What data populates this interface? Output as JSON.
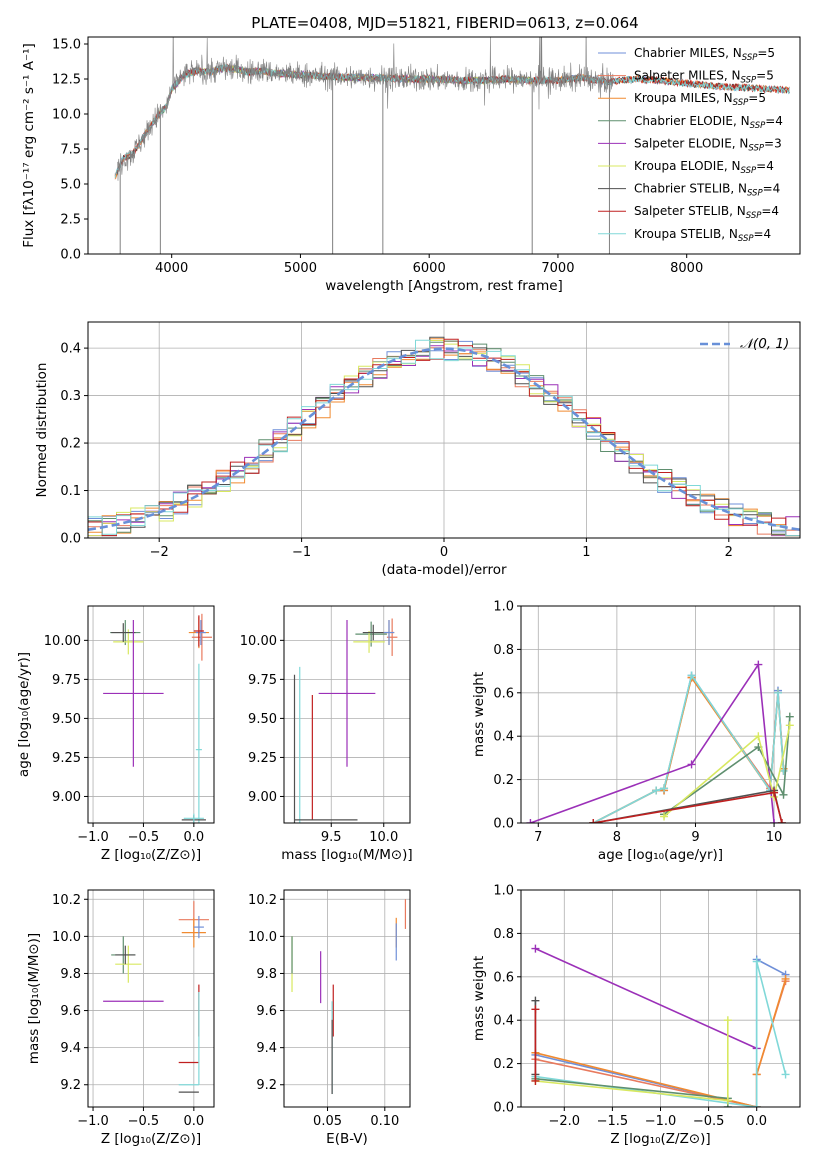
{
  "figure_title": "PLATE=0408, MJD=51821, FIBERID=0613, z=0.064",
  "colors": {
    "cm": "#6f8fd8",
    "sm": "#e87a5e",
    "km": "#f08a30",
    "ce": "#5f8f6f",
    "se": "#9b30b8",
    "ke": "#d8e860",
    "cs": "#505050",
    "ss": "#c02020",
    "ks": "#80d8d8",
    "grey": "#808080",
    "dash": "#6890d8"
  },
  "legend": [
    {
      "key": "cm",
      "label": "Chabrier MILES, N",
      "sub": "SSP",
      "suffix": "=5"
    },
    {
      "key": "sm",
      "label": "Salpeter MILES, N",
      "sub": "SSP",
      "suffix": "=5"
    },
    {
      "key": "km",
      "label": "Kroupa MILES, N",
      "sub": "SSP",
      "suffix": "=5"
    },
    {
      "key": "ce",
      "label": "Chabrier ELODIE, N",
      "sub": "SSP",
      "suffix": "=4"
    },
    {
      "key": "se",
      "label": "Salpeter ELODIE, N",
      "sub": "SSP",
      "suffix": "=3"
    },
    {
      "key": "ke",
      "label": "Kroupa ELODIE, N",
      "sub": "SSP",
      "suffix": "=4"
    },
    {
      "key": "cs",
      "label": "Chabrier STELIB, N",
      "sub": "SSP",
      "suffix": "=4"
    },
    {
      "key": "ss",
      "label": "Salpeter STELIB, N",
      "sub": "SSP",
      "suffix": "=4"
    },
    {
      "key": "ks",
      "label": "Kroupa STELIB, N",
      "sub": "SSP",
      "suffix": "=4"
    }
  ],
  "hist_legend": "𝒩(0, 1)",
  "chart_data": [
    {
      "id": "spectrum",
      "type": "line",
      "xlabel": "wavelength [Angstrom, rest frame]",
      "ylabel": "Flux [fλ10⁻¹⁷ erg cm⁻² s⁻¹ A⁻¹]",
      "xlim": [
        3350,
        8880
      ],
      "ylim": [
        0,
        15.5
      ],
      "xticks": [
        4000,
        5000,
        6000,
        7000,
        8000
      ],
      "yticks": [
        0.0,
        2.5,
        5.0,
        7.5,
        10.0,
        12.5,
        15.0
      ],
      "xtick_labels": [
        "4000",
        "5000",
        "6000",
        "7000",
        "8000"
      ],
      "ytick_labels": [
        "0.0",
        "2.5",
        "5.0",
        "7.5",
        "10.0",
        "12.5",
        "15.0"
      ],
      "model_continuum": {
        "x": [
          3560,
          3620,
          3700,
          3800,
          3900,
          3960,
          4000,
          4100,
          4200,
          4300,
          4400,
          4500,
          4600,
          4700,
          4800,
          5000,
          5200,
          5400,
          5600,
          5800,
          6000,
          6200,
          6400,
          6600,
          6800,
          7000,
          7200,
          7300,
          7400,
          7500,
          7600,
          7800,
          8000,
          8200,
          8400,
          8600,
          8800
        ],
        "y": [
          5.5,
          6.8,
          7.2,
          8.6,
          10.0,
          10.5,
          11.8,
          12.8,
          13.1,
          13.0,
          13.3,
          13.2,
          13.0,
          13.1,
          12.9,
          12.8,
          12.7,
          12.6,
          12.6,
          12.5,
          12.5,
          12.4,
          12.4,
          12.5,
          12.4,
          12.4,
          12.6,
          12.4,
          12.3,
          12.4,
          12.5,
          12.4,
          12.2,
          12.0,
          11.9,
          11.8,
          11.7
        ]
      },
      "data_wavelength_range": [
        3580,
        7430
      ],
      "data_dropouts": [
        {
          "x": 3600,
          "y": 0.0
        },
        {
          "x": 3912,
          "y": 0.0
        },
        {
          "x": 5250,
          "y": 0.0
        },
        {
          "x": 5640,
          "y": 0.0
        },
        {
          "x": 6800,
          "y": 0.0
        },
        {
          "x": 7400,
          "y": 0.0
        }
      ]
    },
    {
      "id": "residual_histogram",
      "type": "line",
      "xlabel": "(data-model)/error",
      "ylabel": "Normed distribution",
      "xlim": [
        -2.5,
        2.5
      ],
      "ylim": [
        0,
        0.455
      ],
      "xticks": [
        -2,
        -1,
        0,
        1,
        2
      ],
      "yticks": [
        0.0,
        0.1,
        0.2,
        0.3,
        0.4
      ],
      "xtick_labels": [
        "−2",
        "−1",
        "0",
        "1",
        "2"
      ],
      "ytick_labels": [
        "0.0",
        "0.1",
        "0.2",
        "0.3",
        "0.4"
      ],
      "bin_width": 0.1,
      "reference": "standard normal N(0,1)"
    },
    {
      "id": "age_vs_Z",
      "type": "scatter",
      "xlabel": "Z [log₁₀(Z/Z⊙)]",
      "ylabel": "age  [log₁₀(age/yr)]",
      "xlim": [
        -1.05,
        0.2
      ],
      "ylim": [
        8.83,
        10.22
      ],
      "xticks": [
        -1.0,
        -0.5,
        0.0
      ],
      "yticks": [
        9.0,
        9.25,
        9.5,
        9.75,
        10.0
      ],
      "xtick_labels": [
        "−1.0",
        "−0.5",
        "0.0"
      ],
      "ytick_labels": [
        "9.00",
        "9.25",
        "9.50",
        "9.75",
        "10.00"
      ],
      "points": [
        {
          "s": "ce",
          "x": -0.68,
          "y": 10.05,
          "ex": 0.15,
          "ey": 0.08
        },
        {
          "s": "ke",
          "x": -0.65,
          "y": 9.99,
          "ex": 0.15,
          "ey": 0.08
        },
        {
          "s": "cs",
          "x": -0.7,
          "y": 10.05,
          "ex": 0.12,
          "ey": 0.06
        },
        {
          "s": "se",
          "x": -0.6,
          "y": 9.66,
          "ex": 0.3,
          "ey": 0.47
        },
        {
          "s": "km",
          "x": 0.05,
          "y": 10.05,
          "ex": 0.1,
          "ey": 0.1
        },
        {
          "s": "sm",
          "x": 0.08,
          "y": 10.02,
          "ex": 0.1,
          "ey": 0.15
        },
        {
          "s": "cm",
          "x": 0.07,
          "y": 10.05,
          "ex": 0.05,
          "ey": 0.08
        },
        {
          "s": "ss",
          "x": 0.05,
          "y": 10.06,
          "ex": 0.05,
          "ey": 0.1
        },
        {
          "s": "ks",
          "x": 0.05,
          "y": 9.3,
          "ex": 0.03,
          "ey": 0.55
        },
        {
          "s": "cs",
          "x": 0.0,
          "y": 8.85,
          "ex": 0.12,
          "ey": 0.03
        },
        {
          "s": "ks",
          "x": 0.0,
          "y": 8.86,
          "ex": 0.1,
          "ey": 0.03
        }
      ]
    },
    {
      "id": "age_vs_mass",
      "type": "scatter",
      "xlabel": "mass [log₁₀(M/M⊙)]",
      "ylabel": "",
      "xlim": [
        9.05,
        10.25
      ],
      "ylim": [
        8.83,
        10.22
      ],
      "xticks": [
        9.5,
        10.0
      ],
      "yticks": [
        9.0,
        9.25,
        9.5,
        9.75,
        10.0
      ],
      "xtick_labels": [
        "9.5",
        "10.0"
      ],
      "ytick_labels": [
        "9.00",
        "9.25",
        "9.50",
        "9.75",
        "10.00"
      ],
      "points": [
        {
          "s": "se",
          "x": 9.65,
          "y": 9.66,
          "ex": 0.27,
          "ey": 0.47
        },
        {
          "s": "ce",
          "x": 9.88,
          "y": 10.04,
          "ex": 0.15,
          "ey": 0.08
        },
        {
          "s": "ke",
          "x": 9.86,
          "y": 9.99,
          "ex": 0.15,
          "ey": 0.07
        },
        {
          "s": "cs",
          "x": 9.9,
          "y": 10.05,
          "ex": 0.1,
          "ey": 0.05
        },
        {
          "s": "km",
          "x": 10.05,
          "y": 10.05,
          "ex": 0.05,
          "ey": 0.08
        },
        {
          "s": "sm",
          "x": 10.08,
          "y": 10.02,
          "ex": 0.05,
          "ey": 0.12
        },
        {
          "s": "cm",
          "x": 10.05,
          "y": 10.05,
          "ex": 0.05,
          "ey": 0.08
        },
        {
          "s": "ss",
          "x": 9.32,
          "y": 9.25,
          "ex": 0.0,
          "ey": 0.4
        },
        {
          "s": "ks",
          "x": 9.2,
          "y": 9.33,
          "ex": 0.0,
          "ey": 0.5
        },
        {
          "s": "cs",
          "x": 9.15,
          "y": 9.3,
          "ex": 0.0,
          "ey": 0.48
        },
        {
          "s": "cs",
          "x": 9.45,
          "y": 8.85,
          "ex": 0.3,
          "ey": 0.0
        }
      ]
    },
    {
      "id": "weight_vs_age",
      "type": "line",
      "xlabel": "age  [log₁₀(age/yr)]",
      "ylabel": "mass weight",
      "xlim": [
        6.78,
        10.33
      ],
      "ylim": [
        0,
        1.0
      ],
      "xticks": [
        7,
        8,
        9,
        10
      ],
      "yticks": [
        0.0,
        0.2,
        0.4,
        0.6,
        0.8,
        1.0
      ],
      "xtick_labels": [
        "7",
        "8",
        "9",
        "10"
      ],
      "ytick_labels": [
        "0.0",
        "0.2",
        "0.4",
        "0.6",
        "0.8",
        "1.0"
      ],
      "series": [
        {
          "s": "cm",
          "x": [
            7.7,
            8.5,
            8.6,
            8.95,
            9.95,
            10.05,
            10.12
          ],
          "y": [
            0.0,
            0.15,
            0.15,
            0.68,
            0.15,
            0.61,
            0.25
          ]
        },
        {
          "s": "sm",
          "x": [
            7.7,
            8.5,
            8.6,
            8.95,
            9.95,
            10.05,
            10.12
          ],
          "y": [
            0.0,
            0.15,
            0.16,
            0.67,
            0.16,
            0.6,
            0.24
          ]
        },
        {
          "s": "km",
          "x": [
            7.7,
            8.5,
            8.6,
            8.95,
            9.95,
            10.05,
            10.12
          ],
          "y": [
            0.0,
            0.15,
            0.15,
            0.67,
            0.15,
            0.6,
            0.25
          ]
        },
        {
          "s": "ks",
          "x": [
            7.7,
            8.5,
            8.6,
            8.95,
            9.95,
            10.05,
            10.12
          ],
          "y": [
            0.0,
            0.15,
            0.16,
            0.68,
            0.15,
            0.6,
            0.24
          ]
        },
        {
          "s": "se",
          "x": [
            6.9,
            8.95,
            9.8,
            10.0
          ],
          "y": [
            0.0,
            0.27,
            0.73,
            0.0
          ]
        },
        {
          "s": "ce",
          "x": [
            8.6,
            9.8,
            10.12,
            10.2
          ],
          "y": [
            0.04,
            0.35,
            0.13,
            0.49
          ]
        },
        {
          "s": "ke",
          "x": [
            8.6,
            9.8,
            10.0,
            10.2
          ],
          "y": [
            0.03,
            0.4,
            0.12,
            0.45
          ]
        },
        {
          "s": "cs",
          "x": [
            7.7,
            10.0,
            10.1
          ],
          "y": [
            0.0,
            0.15,
            0.0
          ]
        },
        {
          "s": "ss",
          "x": [
            7.7,
            10.0,
            10.1
          ],
          "y": [
            0.0,
            0.14,
            0.0
          ]
        }
      ]
    },
    {
      "id": "mass_vs_Z",
      "type": "scatter",
      "xlabel": "Z [log₁₀(Z/Z⊙)]",
      "ylabel": "mass [log₁₀(M/M⊙)]",
      "xlim": [
        -1.05,
        0.2
      ],
      "ylim": [
        9.08,
        10.25
      ],
      "xticks": [
        -1.0,
        -0.5,
        0.0
      ],
      "yticks": [
        9.2,
        9.4,
        9.6,
        9.8,
        10.0,
        10.2
      ],
      "xtick_labels": [
        "−1.0",
        "−0.5",
        "0.0"
      ],
      "ytick_labels": [
        "9.2",
        "9.4",
        "9.6",
        "9.8",
        "10.0",
        "10.2"
      ],
      "points": [
        {
          "s": "ce",
          "x": -0.7,
          "y": 9.9,
          "ex": 0.12,
          "ey": 0.1
        },
        {
          "s": "ke",
          "x": -0.65,
          "y": 9.85,
          "ex": 0.13,
          "ey": 0.1
        },
        {
          "s": "cs",
          "x": -0.68,
          "y": 9.9,
          "ex": 0.1,
          "ey": 0.05
        },
        {
          "s": "se",
          "x": -0.6,
          "y": 9.65,
          "ex": 0.3,
          "ey": 0.0
        },
        {
          "s": "sm",
          "x": 0.0,
          "y": 10.09,
          "ex": 0.15,
          "ey": 0.1
        },
        {
          "s": "km",
          "x": 0.0,
          "y": 10.02,
          "ex": 0.12,
          "ey": 0.08
        },
        {
          "s": "cm",
          "x": 0.05,
          "y": 10.05,
          "ex": 0.05,
          "ey": 0.06
        },
        {
          "s": "ss",
          "x": -0.05,
          "y": 9.32,
          "ex": 0.1,
          "ey": 0.0
        },
        {
          "s": "ss",
          "x": 0.05,
          "y": 9.6,
          "ex": 0.0,
          "ey": 0.14
        },
        {
          "s": "ks",
          "x": 0.05,
          "y": 9.45,
          "ex": 0.0,
          "ey": 0.25
        },
        {
          "s": "ks",
          "x": -0.05,
          "y": 9.2,
          "ex": 0.1,
          "ey": 0.0
        },
        {
          "s": "cs",
          "x": -0.05,
          "y": 9.16,
          "ex": 0.1,
          "ey": 0.0
        }
      ]
    },
    {
      "id": "mass_vs_ebv",
      "type": "scatter",
      "xlabel": "E(B-V)",
      "ylabel": "",
      "xlim": [
        0.012,
        0.122
      ],
      "ylim": [
        9.08,
        10.25
      ],
      "xticks": [
        0.05,
        0.1
      ],
      "yticks": [
        9.2,
        9.4,
        9.6,
        9.8,
        10.0,
        10.2
      ],
      "xtick_labels": [
        "0.05",
        "0.10"
      ],
      "ytick_labels": [
        "9.2",
        "9.4",
        "9.6",
        "9.8",
        "10.0",
        "10.2"
      ],
      "points": [
        {
          "s": "ke",
          "x": 0.019,
          "y": 9.85,
          "ex": 0.0,
          "ey": 0.15
        },
        {
          "s": "ce",
          "x": 0.019,
          "y": 9.9,
          "ex": 0.0,
          "ey": 0.1
        },
        {
          "s": "se",
          "x": 0.044,
          "y": 9.78,
          "ex": 0.0,
          "ey": 0.14
        },
        {
          "s": "ss",
          "x": 0.055,
          "y": 9.6,
          "ex": 0.0,
          "ey": 0.14
        },
        {
          "s": "ks",
          "x": 0.054,
          "y": 9.4,
          "ex": 0.0,
          "ey": 0.25
        },
        {
          "s": "cs",
          "x": 0.054,
          "y": 9.35,
          "ex": 0.0,
          "ey": 0.2
        },
        {
          "s": "km",
          "x": 0.11,
          "y": 10.02,
          "ex": 0.0,
          "ey": 0.08
        },
        {
          "s": "cm",
          "x": 0.11,
          "y": 9.97,
          "ex": 0.0,
          "ey": 0.1
        },
        {
          "s": "sm",
          "x": 0.118,
          "y": 10.12,
          "ex": 0.0,
          "ey": 0.08
        }
      ]
    },
    {
      "id": "weight_vs_Z",
      "type": "line",
      "xlabel": "Z [log₁₀(Z/Z⊙)]",
      "ylabel": "mass weight",
      "xlim": [
        -2.45,
        0.45
      ],
      "ylim": [
        0,
        1.0
      ],
      "xticks": [
        -2.0,
        -1.5,
        -1.0,
        -0.5,
        0.0
      ],
      "yticks": [
        0.0,
        0.2,
        0.4,
        0.6,
        0.8,
        1.0
      ],
      "xtick_labels": [
        "−2.0",
        "−1.5",
        "−1.0",
        "−0.5",
        "0.0"
      ],
      "ytick_labels": [
        "0.0",
        "0.2",
        "0.4",
        "0.6",
        "0.8",
        "1.0"
      ],
      "series": [
        {
          "s": "se",
          "x": [
            -2.3,
            0.0
          ],
          "y": [
            0.73,
            0.27
          ]
        },
        {
          "s": "cm",
          "x": [
            -2.3,
            0.0,
            0.0,
            0.3
          ],
          "y": [
            0.24,
            0.0,
            0.68,
            0.61
          ]
        },
        {
          "s": "sm",
          "x": [
            -2.3,
            0.0,
            0.0,
            0.3
          ],
          "y": [
            0.22,
            0.0,
            0.15,
            0.58
          ]
        },
        {
          "s": "km",
          "x": [
            -2.3,
            0.0,
            0.0,
            0.3
          ],
          "y": [
            0.25,
            0.0,
            0.15,
            0.59
          ]
        },
        {
          "s": "ks",
          "x": [
            -2.3,
            0.0,
            0.0,
            0.3
          ],
          "y": [
            0.14,
            0.0,
            0.67,
            0.15
          ]
        },
        {
          "s": "ce",
          "x": [
            -2.3,
            -0.3,
            -0.3
          ],
          "y": [
            0.13,
            0.04,
            0.0
          ]
        },
        {
          "s": "ke",
          "x": [
            -2.3,
            -0.3,
            -0.3
          ],
          "y": [
            0.12,
            0.03,
            0.4
          ]
        },
        {
          "s": "cs",
          "x": [
            -2.3,
            -2.3
          ],
          "y": [
            0.15,
            0.49
          ]
        },
        {
          "s": "ss",
          "x": [
            -2.3,
            -2.3
          ],
          "y": [
            0.12,
            0.45
          ]
        }
      ]
    }
  ]
}
